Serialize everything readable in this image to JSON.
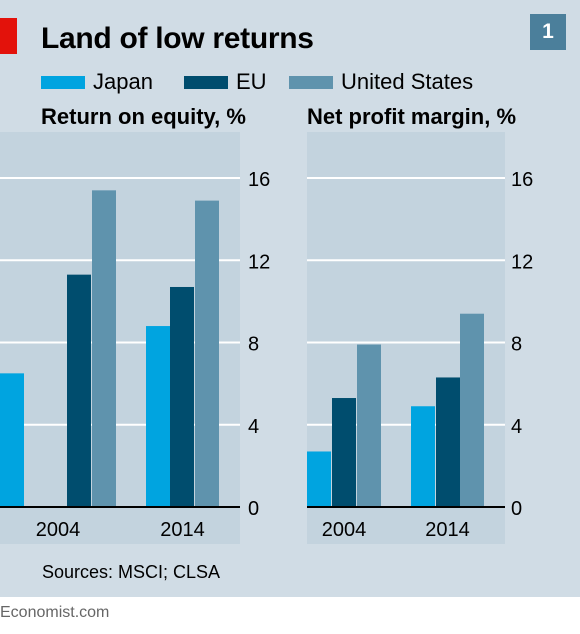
{
  "header": {
    "title": "Land of low returns",
    "chart_number": "1"
  },
  "legend": {
    "items": [
      {
        "label": "Japan",
        "color": "#00a4e0"
      },
      {
        "label": "EU",
        "color": "#004d6e"
      },
      {
        "label": "United States",
        "color": "#5f93ad"
      }
    ]
  },
  "footer": {
    "sources": "Sources: MSCI; CLSA",
    "publisher": "Economist.com"
  },
  "colors": {
    "background": "#d0dce5",
    "plot_background": "#c3d3de",
    "gridline": "#ffffff",
    "accent_red": "#e3120b",
    "number_box": "#4b7f9b"
  },
  "chart_data": [
    {
      "type": "bar",
      "title": "Return on equity, %",
      "categories": [
        "2004",
        "2014"
      ],
      "series": [
        {
          "name": "Japan",
          "values": [
            6.5,
            8.8
          ]
        },
        {
          "name": "EU",
          "values": [
            11.3,
            10.7
          ]
        },
        {
          "name": "United States",
          "values": [
            15.4,
            14.9
          ]
        }
      ],
      "ylim": [
        0,
        16
      ],
      "yticks": [
        0,
        4,
        8,
        12,
        16
      ],
      "y_axis_side": "right",
      "grid": true
    },
    {
      "type": "bar",
      "title": "Net profit margin, %",
      "categories": [
        "2004",
        "2014"
      ],
      "series": [
        {
          "name": "Japan",
          "values": [
            2.7,
            4.9
          ]
        },
        {
          "name": "EU",
          "values": [
            5.3,
            6.3
          ]
        },
        {
          "name": "United States",
          "values": [
            7.9,
            9.4
          ]
        }
      ],
      "ylim": [
        0,
        16
      ],
      "yticks": [
        0,
        4,
        8,
        12,
        16
      ],
      "y_axis_side": "right",
      "grid": true
    }
  ]
}
